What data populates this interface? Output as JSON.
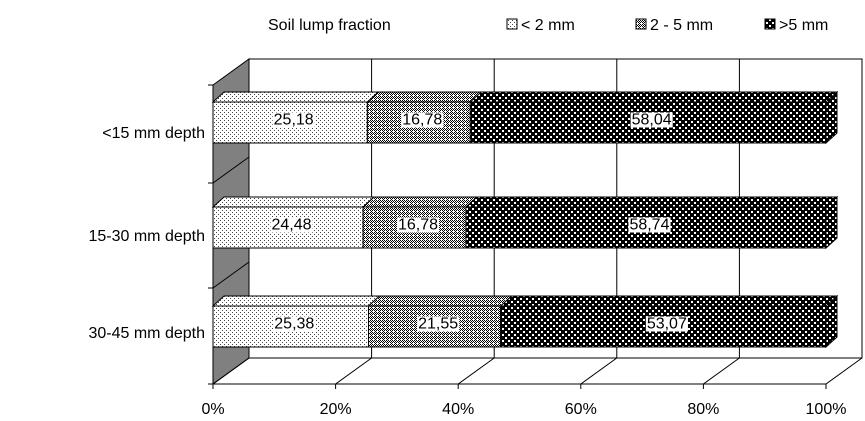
{
  "chart_data": {
    "type": "bar",
    "orientation": "horizontal",
    "stacked": "percent",
    "three_d": true,
    "title": "",
    "xlabel": "",
    "ylabel": "",
    "legend": {
      "title": "Soil lump fraction",
      "placement": "top"
    },
    "categories": [
      "<15 mm depth",
      "15-30 mm depth",
      "30-45 mm depth"
    ],
    "series": [
      {
        "name": "< 2 mm",
        "values": [
          25.18,
          24.48,
          25.38
        ],
        "labels": [
          "25,18",
          "24,48",
          "25,38"
        ],
        "pattern": "fine-dots",
        "color": "#ffffff"
      },
      {
        "name": "2 - 5 mm",
        "values": [
          16.78,
          16.78,
          21.55
        ],
        "labels": [
          "16,78",
          "16,78",
          "21,55"
        ],
        "pattern": "crosshatch",
        "color": "#c0c0c0"
      },
      {
        "name": ">5 mm",
        "values": [
          58.04,
          58.74,
          53.07
        ],
        "labels": [
          "58,04",
          "58,74",
          "53,07"
        ],
        "pattern": "dense-check",
        "color": "#000000"
      }
    ],
    "xlim": [
      0,
      100
    ],
    "x_ticks": [
      "0%",
      "20%",
      "40%",
      "60%",
      "80%",
      "100%"
    ],
    "grid": true,
    "side_wall_color": "#808080"
  }
}
